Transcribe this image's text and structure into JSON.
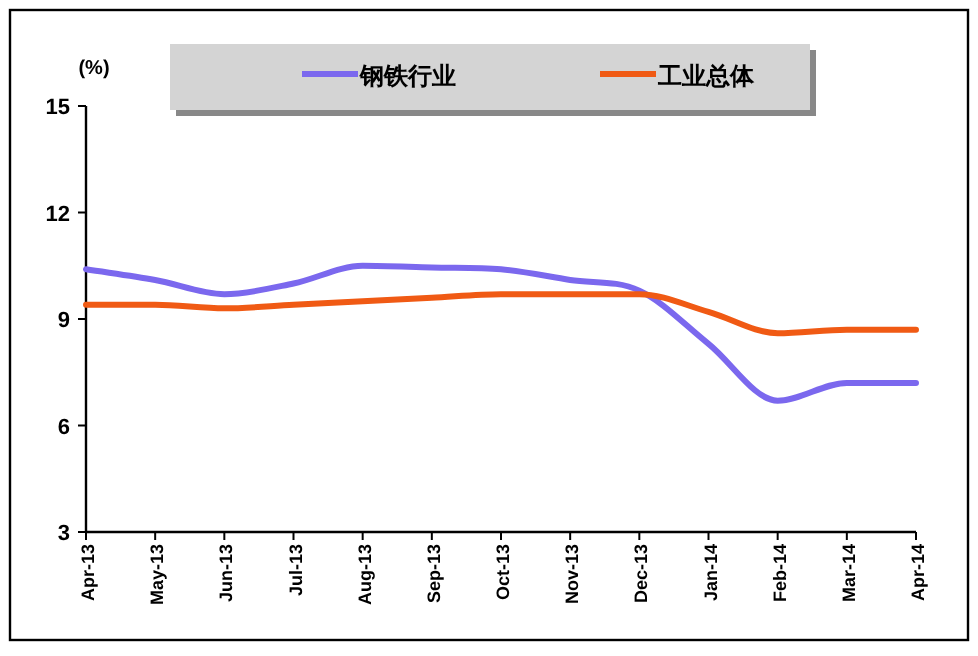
{
  "chart_data": {
    "type": "line",
    "ylabel": "(%)",
    "categories": [
      "Apr-13",
      "May-13",
      "Jun-13",
      "Jul-13",
      "Aug-13",
      "Sep-13",
      "Oct-13",
      "Nov-13",
      "Dec-13",
      "Jan-14",
      "Feb-14",
      "Mar-14",
      "Apr-14"
    ],
    "series": [
      {
        "name": "钢铁行业",
        "color": "#7b68ee",
        "values": [
          10.4,
          10.1,
          9.7,
          10.0,
          10.5,
          10.45,
          10.4,
          10.1,
          9.8,
          8.3,
          6.7,
          7.2,
          7.2
        ]
      },
      {
        "name": "工业总体",
        "color": "#f05a14",
        "values": [
          9.4,
          9.4,
          9.3,
          9.4,
          9.5,
          9.6,
          9.7,
          9.7,
          9.7,
          9.2,
          8.6,
          8.7,
          8.7
        ]
      }
    ],
    "ylim": [
      3,
      15
    ],
    "yticks": [
      3,
      6,
      9,
      12,
      15
    ],
    "legend": "top"
  }
}
